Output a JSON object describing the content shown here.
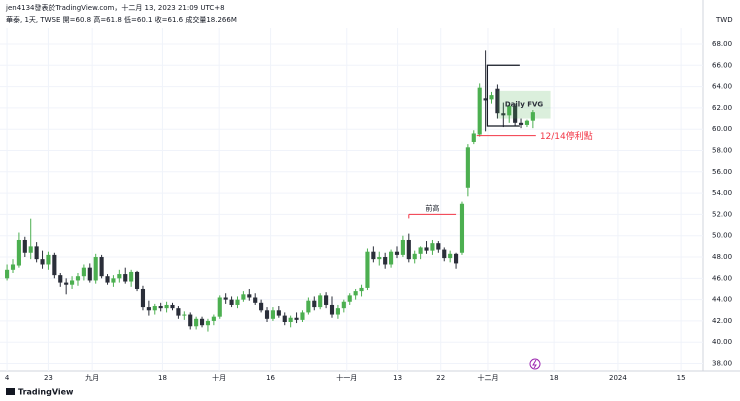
{
  "chart_data": {
    "type": "candlestick",
    "title": "jen4134發表於TradingView.com，十二月 13, 2023 21:09 UTC+8",
    "subtitle": "華泰, 1天, TWSE  開=60.8  高=61.8  低=60.1  收=61.6  成交量18.266M",
    "currency": "TWD",
    "watermark": "TradingView",
    "up_color": "#4caf50",
    "down_color": "#2a2e39",
    "open": [
      46.0,
      46.8,
      47.2,
      49.6,
      48.4,
      49.0,
      47.8,
      47.3,
      48.2,
      46.3,
      45.6,
      45.4,
      45.8,
      46.2,
      47.0,
      45.8,
      48.0,
      46.2,
      45.6,
      46.0,
      46.4,
      45.7,
      46.6,
      45.0,
      43.3,
      43.0,
      43.4,
      43.2,
      43.5,
      43.2,
      42.5,
      42.6,
      41.5,
      42.2,
      41.6,
      42.0,
      42.4,
      44.2,
      44.0,
      43.5,
      44.0,
      44.5,
      44.2,
      43.7,
      43.0,
      42.2,
      43.0,
      42.5,
      41.9,
      42.3,
      42.1,
      42.8,
      43.9,
      43.3,
      44.4,
      43.5,
      42.6,
      43.2,
      43.8,
      44.4,
      44.8,
      45.1,
      48.5,
      47.8,
      48.0,
      47.3,
      48.5,
      48.2,
      49.6,
      47.8,
      48.3,
      48.9,
      48.6,
      49.3,
      48.7,
      47.9,
      48.3,
      48.4,
      54.5,
      58.8,
      59.5,
      62.9,
      62.8,
      63.8,
      61.5,
      61.3,
      62.2,
      60.6,
      60.4,
      60.8
    ],
    "high": [
      47.3,
      47.8,
      50.3,
      49.9,
      51.6,
      49.4,
      48.6,
      48.5,
      48.4,
      46.5,
      46.0,
      46.2,
      46.5,
      47.3,
      47.4,
      48.3,
      48.2,
      46.4,
      46.3,
      46.8,
      47.0,
      46.8,
      46.7,
      45.3,
      43.9,
      43.6,
      43.7,
      43.8,
      43.7,
      43.4,
      42.9,
      42.8,
      42.4,
      42.4,
      42.2,
      42.6,
      44.4,
      44.6,
      44.3,
      44.3,
      44.8,
      45.0,
      44.6,
      44.0,
      43.3,
      43.3,
      43.4,
      42.8,
      42.5,
      42.8,
      43.0,
      44.2,
      44.3,
      44.6,
      44.7,
      44.3,
      43.5,
      44.0,
      44.6,
      45.0,
      45.4,
      48.8,
      49.0,
      48.5,
      48.4,
      48.7,
      49.0,
      50.0,
      50.2,
      48.6,
      49.0,
      49.5,
      49.6,
      49.5,
      48.9,
      48.6,
      48.4,
      53.2,
      58.6,
      59.9,
      64.3,
      67.4,
      63.5,
      64.2,
      62.5,
      62.4,
      62.4,
      61.0,
      60.9,
      61.8
    ],
    "low": [
      45.8,
      46.5,
      47.0,
      48.0,
      47.8,
      47.5,
      46.9,
      46.8,
      46.0,
      45.2,
      44.5,
      45.0,
      45.3,
      45.8,
      45.6,
      45.5,
      46.0,
      45.4,
      45.2,
      45.6,
      45.5,
      45.2,
      44.8,
      43.0,
      42.5,
      42.6,
      42.9,
      42.8,
      43.0,
      42.2,
      42.1,
      41.2,
      41.2,
      41.4,
      41.0,
      41.6,
      42.2,
      43.6,
      43.3,
      43.2,
      43.8,
      43.9,
      43.5,
      42.8,
      41.9,
      42.0,
      42.3,
      41.6,
      41.4,
      41.8,
      41.9,
      42.6,
      43.0,
      43.1,
      43.2,
      42.3,
      42.2,
      42.8,
      43.5,
      44.0,
      44.3,
      44.9,
      47.5,
      47.2,
      46.9,
      47.0,
      47.9,
      48.0,
      47.5,
      47.4,
      47.8,
      48.3,
      48.2,
      48.4,
      47.6,
      47.5,
      46.9,
      48.2,
      53.7,
      58.6,
      59.3,
      59.8,
      62.4,
      61.0,
      60.2,
      60.6,
      60.3,
      60.1,
      60.2,
      60.1
    ],
    "close": [
      46.8,
      47.3,
      49.6,
      48.4,
      49.0,
      47.8,
      47.3,
      48.2,
      46.3,
      45.6,
      45.4,
      45.8,
      46.2,
      47.0,
      45.8,
      48.0,
      46.2,
      45.6,
      46.0,
      46.4,
      45.7,
      46.6,
      45.0,
      43.3,
      43.0,
      43.4,
      43.2,
      43.5,
      43.2,
      42.5,
      42.6,
      41.5,
      42.2,
      41.6,
      42.0,
      42.4,
      44.2,
      44.0,
      43.5,
      44.0,
      44.5,
      44.2,
      43.7,
      43.0,
      42.2,
      43.0,
      42.5,
      41.9,
      42.3,
      42.1,
      42.8,
      43.9,
      43.3,
      44.4,
      43.5,
      42.6,
      43.2,
      43.8,
      44.4,
      44.8,
      45.1,
      48.5,
      47.8,
      48.0,
      47.3,
      48.5,
      48.2,
      49.6,
      47.8,
      48.3,
      48.9,
      48.6,
      49.3,
      48.7,
      47.9,
      48.3,
      47.4,
      53.0,
      58.3,
      59.6,
      63.9,
      62.7,
      63.2,
      61.5,
      61.3,
      62.2,
      60.6,
      60.4,
      60.8,
      61.6
    ],
    "xlim": [
      -1.2,
      117.8
    ],
    "xticks": [
      {
        "value": 0,
        "label": "4"
      },
      {
        "value": 7,
        "label": "23"
      },
      {
        "value": 14.4,
        "label": "九月"
      },
      {
        "value": 26.3,
        "label": "18"
      },
      {
        "value": 35.9,
        "label": "十月"
      },
      {
        "value": 44.6,
        "label": "16"
      },
      {
        "value": 57.5,
        "label": "十一月"
      },
      {
        "value": 66.1,
        "label": "13"
      },
      {
        "value": 73.4,
        "label": "22"
      },
      {
        "value": 81.4,
        "label": "十二月"
      },
      {
        "value": 92.6,
        "label": "18"
      },
      {
        "value": 103.4,
        "label": "2024"
      },
      {
        "value": 114.1,
        "label": "15"
      }
    ],
    "ylim": [
      37.3,
      69.5
    ],
    "yticks": [
      {
        "value": 38,
        "label": "38.00"
      },
      {
        "value": 40,
        "label": "40.00"
      },
      {
        "value": 42,
        "label": "42.00"
      },
      {
        "value": 44,
        "label": "44.00"
      },
      {
        "value": 46,
        "label": "46.00"
      },
      {
        "value": 48,
        "label": "48.00"
      },
      {
        "value": 50,
        "label": "50.00"
      },
      {
        "value": 52,
        "label": "52.00"
      },
      {
        "value": 54,
        "label": "54.00"
      },
      {
        "value": 56,
        "label": "56.00"
      },
      {
        "value": 58,
        "label": "58.00"
      },
      {
        "value": 60,
        "label": "60.00"
      },
      {
        "value": 62,
        "label": "62.00"
      },
      {
        "value": 64,
        "label": "64.00"
      },
      {
        "value": 66,
        "label": "66.00"
      },
      {
        "value": 68,
        "label": "68.00"
      }
    ],
    "annotations": [
      {
        "kind": "level",
        "text": "前高",
        "color": "#f23645",
        "y": 52,
        "x": [
          68,
          76
        ]
      },
      {
        "kind": "level",
        "text": "12/14停利點",
        "color": "#f23645",
        "y": 59.4,
        "x": [
          79.5,
          89.5
        ]
      },
      {
        "kind": "box",
        "text": "Daily FVG",
        "color": "#4caf50",
        "y": [
          61,
          63.6
        ],
        "x": [
          83,
          92
        ]
      },
      {
        "kind": "path",
        "color": "#131722",
        "x": [
          86.8,
          81.3,
          81.3,
          86.8
        ],
        "y": [
          60.3,
          60.3,
          66,
          66
        ]
      }
    ]
  }
}
